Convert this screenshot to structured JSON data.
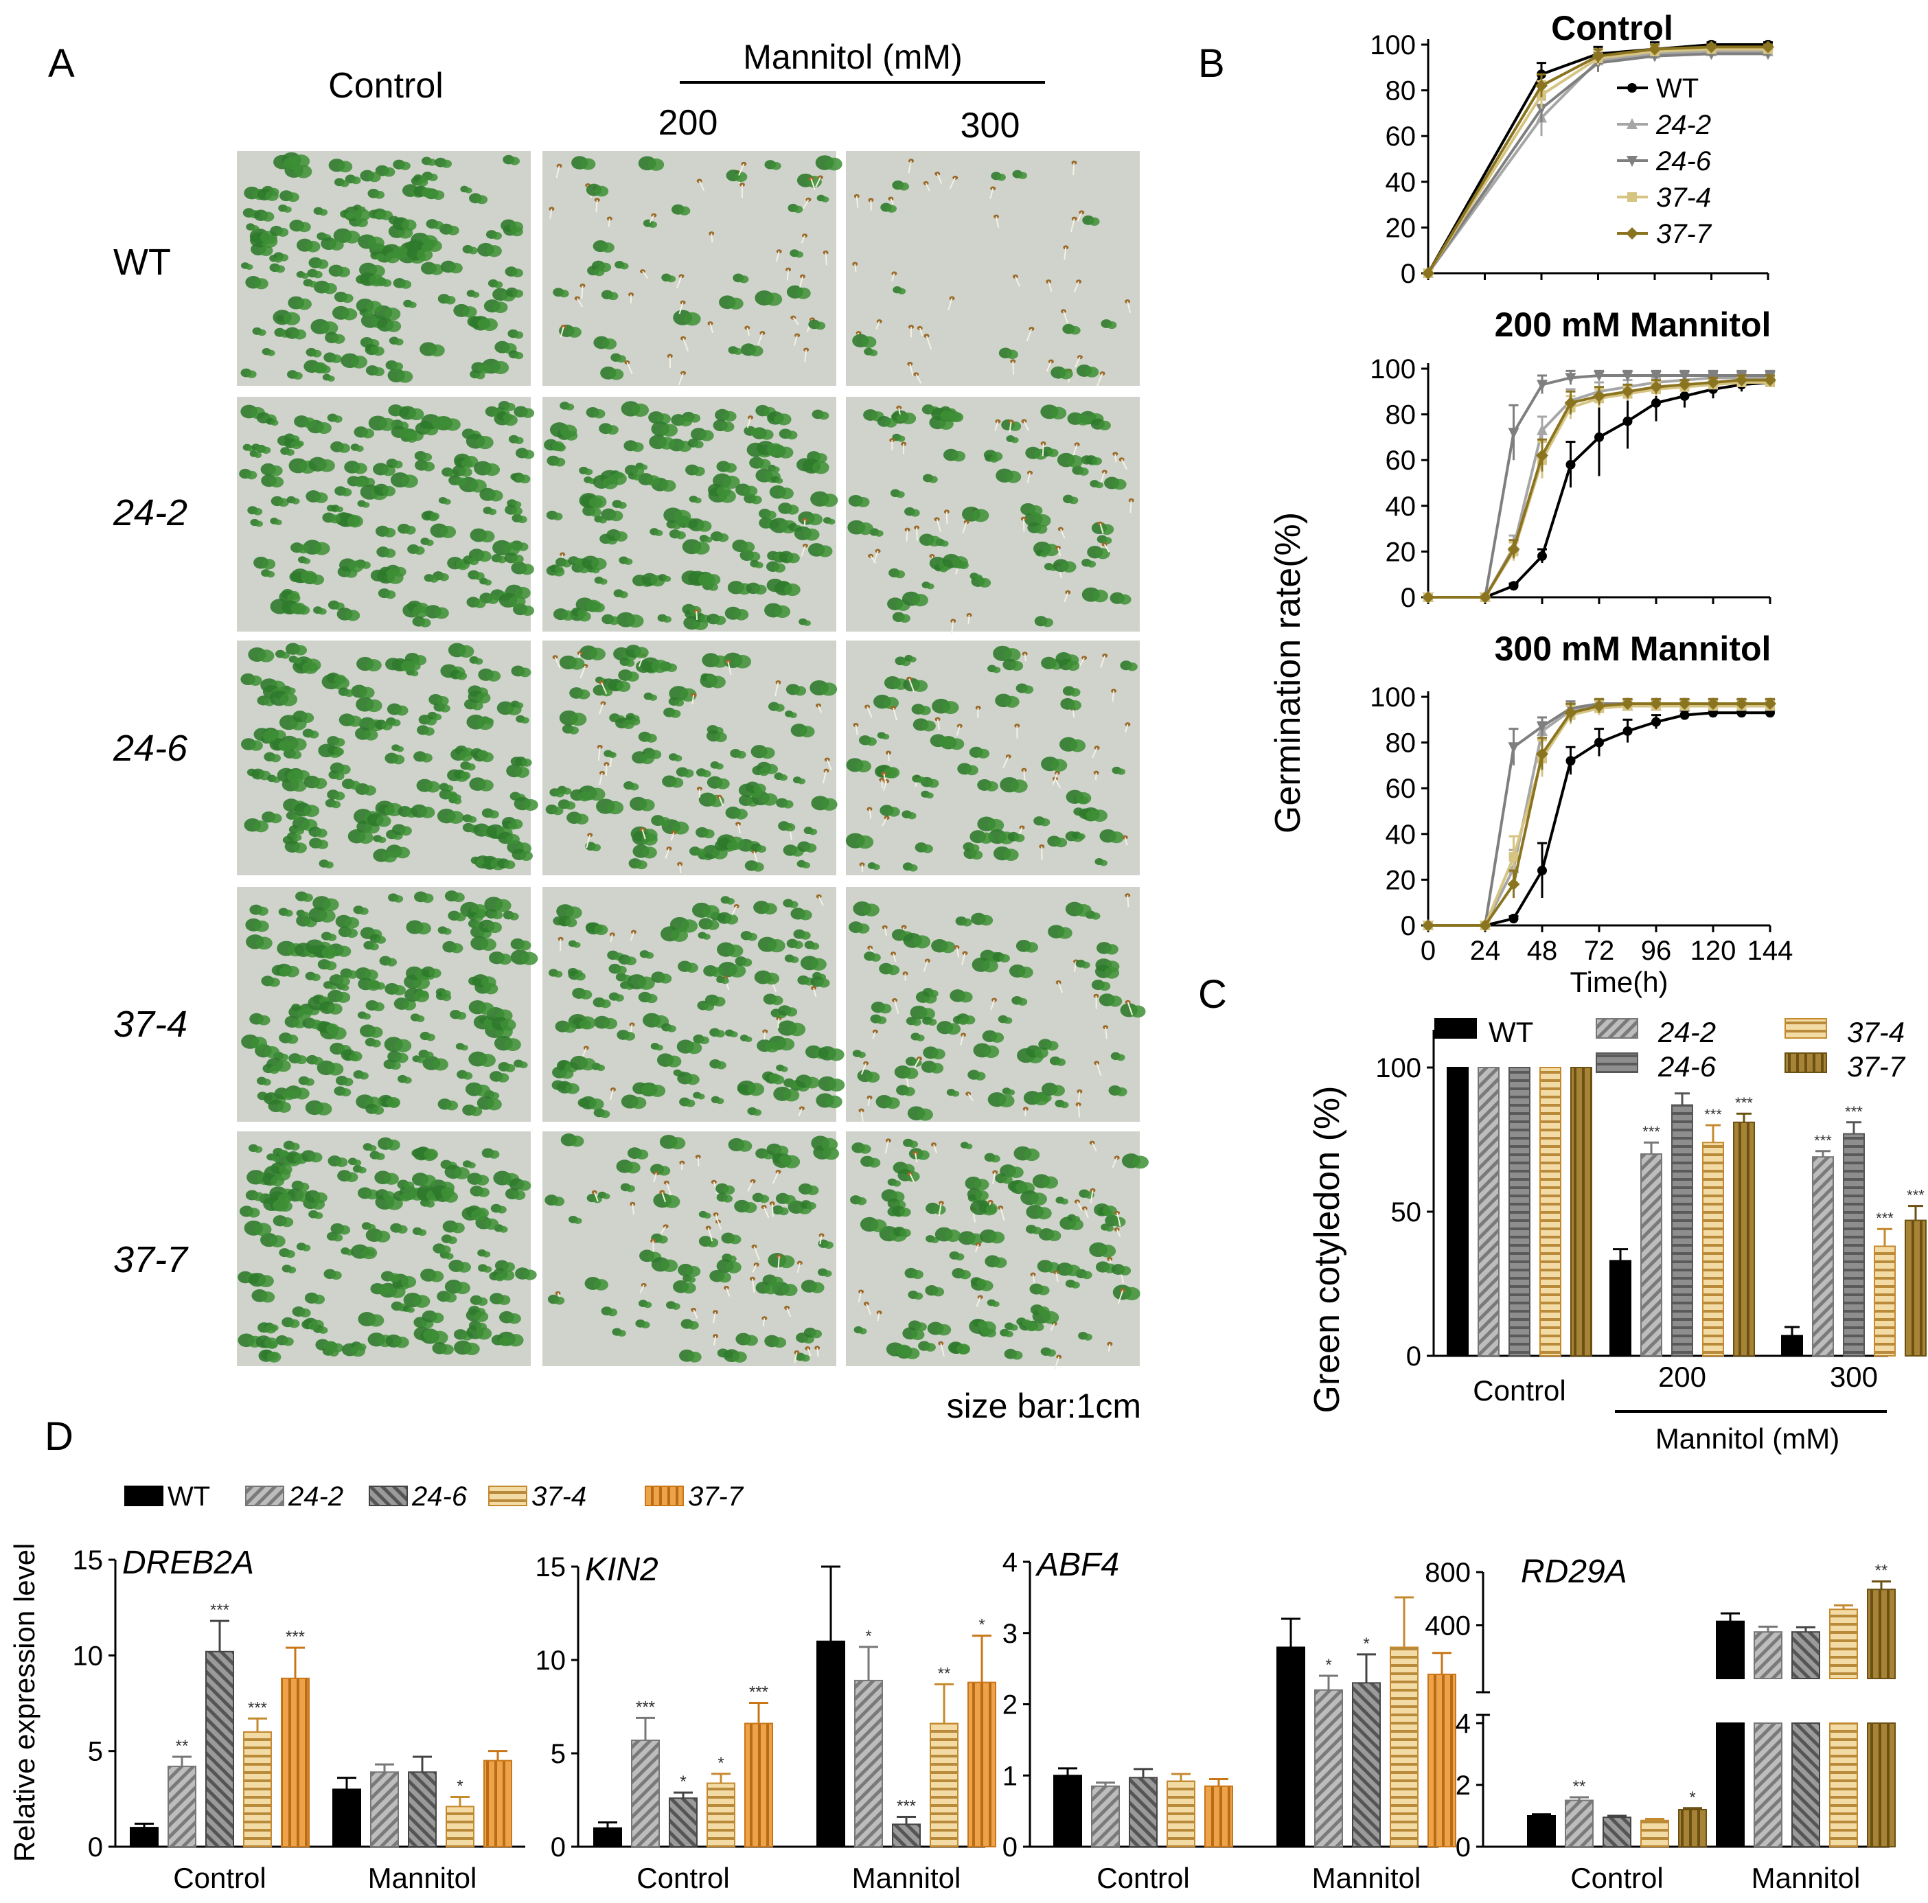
{
  "figure": {
    "panel_labels": {
      "a": "A",
      "b": "B",
      "c": "C",
      "d": "D"
    }
  },
  "panel_a": {
    "col_headers": [
      "Control",
      "200",
      "300"
    ],
    "group_header": "Mannitol (mM)",
    "row_labels": [
      "WT",
      "24-2",
      "24-6",
      "37-4",
      "37-7"
    ],
    "size_bar": "size bar:1cm",
    "photo_density": [
      [
        1.0,
        0.35,
        0.15
      ],
      [
        1.0,
        0.95,
        0.6
      ],
      [
        1.0,
        0.8,
        0.55
      ],
      [
        1.0,
        0.8,
        0.55
      ],
      [
        1.0,
        0.6,
        0.8
      ]
    ]
  },
  "colors": {
    "WT": "#000000",
    "24-2": "#a6a6a6",
    "24-6": "#7f7f7f",
    "37-4": "#d6c483",
    "37-7": "#8b7420",
    "37-4_bar": "#e9c889",
    "37-7_bar_d": "#e8a04a",
    "37-7_bar_c": "#9c7a2c",
    "37-4_edge": "#c58a2e",
    "37-7_edge": "#c97617",
    "seedling": "#2f7a2c",
    "plate": "#cfd3cb"
  },
  "chart_data": [
    {
      "id": "B-control",
      "type": "line",
      "title": "Control",
      "ylabel": "Germination rate(%)",
      "xlabel": "Time(h)",
      "xlim": [
        0,
        144
      ],
      "ylim": [
        0,
        100
      ],
      "yticks": [
        0,
        20,
        40,
        60,
        80,
        100
      ],
      "x": [
        0,
        48,
        72,
        96,
        120,
        144
      ],
      "legend": [
        "WT",
        "24-2",
        "24-6",
        "37-4",
        "37-7"
      ],
      "series": [
        {
          "name": "WT",
          "values": [
            0,
            87,
            96,
            98,
            100,
            100
          ],
          "err": [
            0,
            5,
            3,
            3,
            1,
            1
          ]
        },
        {
          "name": "24-2",
          "values": [
            0,
            68,
            93,
            96,
            97,
            97
          ],
          "err": [
            0,
            8,
            4,
            2,
            1,
            1
          ]
        },
        {
          "name": "24-6",
          "values": [
            0,
            72,
            92,
            95,
            96,
            96
          ],
          "err": [
            0,
            6,
            4,
            2,
            1,
            1
          ]
        },
        {
          "name": "37-4",
          "values": [
            0,
            78,
            94,
            97,
            98,
            98
          ],
          "err": [
            0,
            6,
            3,
            2,
            1,
            1
          ]
        },
        {
          "name": "37-7",
          "values": [
            0,
            82,
            95,
            98,
            99,
            99
          ],
          "err": [
            0,
            5,
            3,
            2,
            1,
            1
          ]
        }
      ]
    },
    {
      "id": "B-200",
      "type": "line",
      "title": "200 mM Mannitol",
      "xlim": [
        0,
        144
      ],
      "ylim": [
        0,
        100
      ],
      "yticks": [
        0,
        20,
        40,
        60,
        80,
        100
      ],
      "x": [
        0,
        24,
        36,
        48,
        60,
        72,
        84,
        96,
        108,
        120,
        132,
        144
      ],
      "series": [
        {
          "name": "WT",
          "values": [
            0,
            0,
            5,
            18,
            58,
            70,
            77,
            85,
            88,
            91,
            93,
            94
          ],
          "err": [
            0,
            0,
            1,
            3,
            10,
            17,
            12,
            8,
            5,
            4,
            3,
            2
          ]
        },
        {
          "name": "24-2",
          "values": [
            0,
            0,
            22,
            73,
            86,
            90,
            92,
            94,
            95,
            96,
            96,
            96
          ],
          "err": [
            0,
            0,
            5,
            6,
            5,
            4,
            3,
            2,
            2,
            2,
            2,
            2
          ]
        },
        {
          "name": "24-6",
          "values": [
            0,
            0,
            72,
            93,
            96,
            97,
            97,
            97,
            97,
            97,
            97,
            97
          ],
          "err": [
            0,
            0,
            12,
            4,
            3,
            2,
            2,
            2,
            2,
            2,
            2,
            2
          ]
        },
        {
          "name": "37-4",
          "values": [
            0,
            0,
            20,
            60,
            83,
            87,
            89,
            91,
            92,
            93,
            94,
            94
          ],
          "err": [
            0,
            0,
            4,
            8,
            5,
            4,
            3,
            3,
            2,
            2,
            2,
            2
          ]
        },
        {
          "name": "37-7",
          "values": [
            0,
            0,
            21,
            62,
            85,
            88,
            90,
            92,
            93,
            94,
            95,
            95
          ],
          "err": [
            0,
            0,
            4,
            7,
            5,
            4,
            3,
            3,
            2,
            2,
            2,
            2
          ]
        }
      ]
    },
    {
      "id": "B-300",
      "type": "line",
      "title": "300 mM Mannitol",
      "xlabel": "Time(h)",
      "xlim": [
        0,
        144
      ],
      "ylim": [
        0,
        100
      ],
      "yticks": [
        0,
        20,
        40,
        60,
        80,
        100
      ],
      "xticks": [
        0,
        24,
        48,
        72,
        96,
        120,
        144
      ],
      "x": [
        0,
        24,
        36,
        48,
        60,
        72,
        84,
        96,
        108,
        120,
        132,
        144
      ],
      "series": [
        {
          "name": "WT",
          "values": [
            0,
            0,
            3,
            24,
            72,
            80,
            85,
            89,
            92,
            93,
            93,
            93
          ],
          "err": [
            0,
            0,
            1,
            12,
            6,
            6,
            5,
            3,
            2,
            1,
            1,
            1
          ]
        },
        {
          "name": "24-2",
          "values": [
            0,
            0,
            25,
            85,
            94,
            96,
            96,
            96,
            96,
            96,
            96,
            96
          ],
          "err": [
            0,
            0,
            8,
            4,
            3,
            2,
            2,
            2,
            2,
            2,
            2,
            2
          ]
        },
        {
          "name": "24-6",
          "values": [
            0,
            0,
            78,
            87,
            95,
            97,
            97,
            97,
            97,
            97,
            97,
            97
          ],
          "err": [
            0,
            0,
            8,
            4,
            3,
            2,
            2,
            2,
            2,
            2,
            2,
            2
          ]
        },
        {
          "name": "37-4",
          "values": [
            0,
            0,
            30,
            73,
            92,
            95,
            96,
            96,
            96,
            96,
            96,
            96
          ],
          "err": [
            0,
            0,
            9,
            8,
            4,
            3,
            2,
            2,
            2,
            2,
            2,
            2
          ]
        },
        {
          "name": "37-7",
          "values": [
            0,
            0,
            18,
            75,
            93,
            96,
            97,
            97,
            97,
            97,
            97,
            97
          ],
          "err": [
            0,
            0,
            6,
            7,
            4,
            3,
            2,
            2,
            2,
            2,
            2,
            2
          ]
        }
      ]
    },
    {
      "id": "C",
      "type": "bar",
      "ylabel": "Green cotyledon (%)",
      "ylim": [
        0,
        100
      ],
      "yticks": [
        0,
        50,
        100
      ],
      "categories": [
        "Control",
        "200",
        "300"
      ],
      "group_label": "Mannitol (mM)",
      "legend": [
        "WT",
        "24-2",
        "24-6",
        "37-4",
        "37-7"
      ],
      "series": [
        {
          "name": "WT",
          "values": [
            100,
            33,
            7
          ],
          "err": [
            0,
            4,
            3
          ],
          "sig": [
            "",
            "",
            ""
          ]
        },
        {
          "name": "24-2",
          "values": [
            100,
            70,
            69
          ],
          "err": [
            0,
            4,
            2
          ],
          "sig": [
            "",
            "***",
            "***"
          ]
        },
        {
          "name": "24-6",
          "values": [
            100,
            87,
            77
          ],
          "err": [
            0,
            4,
            4
          ],
          "sig": [
            "",
            "",
            "***"
          ]
        },
        {
          "name": "37-4",
          "values": [
            100,
            74,
            38
          ],
          "err": [
            0,
            6,
            6
          ],
          "sig": [
            "",
            "***",
            "***"
          ]
        },
        {
          "name": "37-7",
          "values": [
            100,
            81,
            47
          ],
          "err": [
            0,
            3,
            5
          ],
          "sig": [
            "",
            "***",
            "***"
          ]
        }
      ]
    },
    {
      "id": "D-DREB2A",
      "type": "bar",
      "title": "DREB2A",
      "ylabel": "Relative expression level",
      "ylim": [
        0,
        15
      ],
      "yticks": [
        0,
        5,
        10,
        15
      ],
      "categories": [
        "Control",
        "Mannitol"
      ],
      "legend": [
        "WT",
        "24-2",
        "24-6",
        "37-4",
        "37-7"
      ],
      "series": [
        {
          "name": "WT",
          "values": [
            1.0,
            3.0
          ],
          "err": [
            0.2,
            0.6
          ],
          "sig": [
            "",
            ""
          ]
        },
        {
          "name": "24-2",
          "values": [
            4.2,
            3.9
          ],
          "err": [
            0.5,
            0.4
          ],
          "sig": [
            "**",
            ""
          ]
        },
        {
          "name": "24-6",
          "values": [
            10.2,
            3.9
          ],
          "err": [
            1.6,
            0.8
          ],
          "sig": [
            "***",
            ""
          ]
        },
        {
          "name": "37-4",
          "values": [
            6.0,
            2.1
          ],
          "err": [
            0.7,
            0.5
          ],
          "sig": [
            "***",
            "*"
          ]
        },
        {
          "name": "37-7",
          "values": [
            8.8,
            4.5
          ],
          "err": [
            1.6,
            0.5
          ],
          "sig": [
            "***",
            ""
          ]
        }
      ]
    },
    {
      "id": "D-KIN2",
      "type": "bar",
      "title": "KIN2",
      "ylim": [
        0,
        15
      ],
      "yticks": [
        0,
        5,
        10,
        15
      ],
      "categories": [
        "Control",
        "Mannitol"
      ],
      "series": [
        {
          "name": "WT",
          "values": [
            1.0,
            11.0
          ],
          "err": [
            0.3,
            4.0
          ],
          "sig": [
            "",
            ""
          ]
        },
        {
          "name": "24-2",
          "values": [
            5.7,
            8.9
          ],
          "err": [
            1.2,
            1.8
          ],
          "sig": [
            "***",
            "*"
          ]
        },
        {
          "name": "24-6",
          "values": [
            2.6,
            1.2
          ],
          "err": [
            0.3,
            0.4
          ],
          "sig": [
            "*",
            "***"
          ]
        },
        {
          "name": "37-4",
          "values": [
            3.4,
            6.6
          ],
          "err": [
            0.5,
            2.1
          ],
          "sig": [
            "*",
            "**"
          ]
        },
        {
          "name": "37-7",
          "values": [
            6.6,
            8.8
          ],
          "err": [
            1.1,
            2.5
          ],
          "sig": [
            "***",
            "*"
          ]
        }
      ]
    },
    {
      "id": "D-ABF4",
      "type": "bar",
      "title": "ABF4",
      "ylim": [
        0,
        4
      ],
      "yticks": [
        0,
        1,
        2,
        3,
        4
      ],
      "categories": [
        "Control",
        "Mannitol"
      ],
      "series": [
        {
          "name": "WT",
          "values": [
            1.0,
            2.8
          ],
          "err": [
            0.1,
            0.4
          ],
          "sig": [
            "",
            ""
          ]
        },
        {
          "name": "24-2",
          "values": [
            0.85,
            2.2
          ],
          "err": [
            0.05,
            0.2
          ],
          "sig": [
            "",
            "*"
          ]
        },
        {
          "name": "24-6",
          "values": [
            0.97,
            2.3
          ],
          "err": [
            0.12,
            0.4
          ],
          "sig": [
            "",
            "*"
          ]
        },
        {
          "name": "37-4",
          "values": [
            0.92,
            2.8
          ],
          "err": [
            0.1,
            0.7
          ],
          "sig": [
            "",
            ""
          ]
        },
        {
          "name": "37-7",
          "values": [
            0.85,
            2.42
          ],
          "err": [
            0.1,
            0.3
          ],
          "sig": [
            "",
            ""
          ]
        }
      ]
    },
    {
      "id": "D-RD29A",
      "type": "bar",
      "title": "RD29A",
      "ylim_lower": [
        0,
        4
      ],
      "ylim_upper": [
        0,
        800
      ],
      "yticks": [
        0,
        2,
        4,
        400,
        800
      ],
      "categories": [
        "Control",
        "Mannitol"
      ],
      "series": [
        {
          "name": "WT",
          "values": [
            1.0,
            430
          ],
          "err": [
            0.05,
            60
          ],
          "sig": [
            "",
            ""
          ]
        },
        {
          "name": "24-2",
          "values": [
            1.5,
            350
          ],
          "err": [
            0.1,
            40
          ],
          "sig": [
            "**",
            ""
          ]
        },
        {
          "name": "24-6",
          "values": [
            0.95,
            350
          ],
          "err": [
            0.05,
            35
          ],
          "sig": [
            "",
            ""
          ]
        },
        {
          "name": "37-4",
          "values": [
            0.85,
            520
          ],
          "err": [
            0.05,
            30
          ],
          "sig": [
            "",
            ""
          ]
        },
        {
          "name": "37-7",
          "values": [
            1.2,
            670
          ],
          "err": [
            0.05,
            60
          ],
          "sig": [
            "*",
            "**"
          ]
        }
      ]
    }
  ]
}
